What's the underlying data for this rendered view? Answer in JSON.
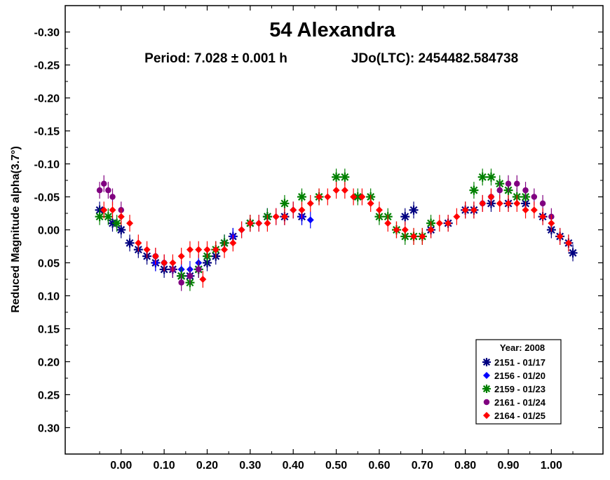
{
  "chart_data": {
    "type": "scatter",
    "title": "54 Alexandra",
    "subtitle_period": "Period: 7.028 ± 0.001 h",
    "subtitle_epoch": "JDo(LTC): 2454482.584738",
    "ylabel": "Reduced Magnitude alpha(3.7°)",
    "xlabel": "",
    "xlim": [
      -0.13,
      1.12
    ],
    "ylim": [
      0.34,
      -0.34
    ],
    "y_inverted": true,
    "grid": false,
    "legend_position": "bottom-right",
    "legend_title": "Year: 2008",
    "x_ticks": [
      0.0,
      0.1,
      0.2,
      0.3,
      0.4,
      0.5,
      0.6,
      0.7,
      0.8,
      0.9,
      1.0
    ],
    "x_tick_labels": [
      "0.00",
      "0.10",
      "0.20",
      "0.30",
      "0.40",
      "0.50",
      "0.60",
      "0.70",
      "0.80",
      "0.90",
      "1.00"
    ],
    "y_ticks": [
      -0.3,
      -0.25,
      -0.2,
      -0.15,
      -0.1,
      -0.05,
      0.0,
      0.05,
      0.1,
      0.15,
      0.2,
      0.25,
      0.3
    ],
    "y_tick_labels": [
      "-0.30",
      "-0.25",
      "-0.20",
      "-0.15",
      "-0.10",
      "-0.05",
      "0.00",
      "0.05",
      "0.10",
      "0.15",
      "0.20",
      "0.25",
      "0.30"
    ],
    "series": [
      {
        "name": "2151 - 01/17",
        "color": "#000080",
        "marker": "asterisk",
        "x": [
          -0.05,
          -0.02,
          0.0,
          0.02,
          0.04,
          0.06,
          0.08,
          0.1,
          0.12,
          0.14,
          0.16,
          0.18,
          0.2,
          0.22,
          0.24,
          0.26,
          0.3,
          0.34,
          0.38,
          0.42,
          0.66,
          0.68,
          0.72,
          0.76,
          0.8,
          0.82,
          0.86,
          0.9,
          0.94,
          0.98,
          1.0,
          1.02,
          1.04,
          1.05
        ],
        "y": [
          -0.03,
          -0.01,
          0.0,
          0.02,
          0.03,
          0.04,
          0.05,
          0.06,
          0.06,
          0.07,
          0.07,
          0.06,
          0.05,
          0.04,
          0.02,
          0.01,
          -0.01,
          -0.02,
          -0.02,
          -0.02,
          -0.02,
          -0.03,
          0.0,
          -0.01,
          -0.03,
          -0.03,
          -0.04,
          -0.04,
          -0.04,
          -0.02,
          0.0,
          0.01,
          0.02,
          0.035
        ]
      },
      {
        "name": "2156 - 01/20",
        "color": "#0000ff",
        "marker": "diamond",
        "x": [
          0.08,
          0.1,
          0.12,
          0.14,
          0.16,
          0.18,
          0.2,
          0.22,
          0.24,
          0.26,
          0.28,
          0.3,
          0.32,
          0.34,
          0.36,
          0.38,
          0.4,
          0.42,
          0.44
        ],
        "y": [
          0.05,
          0.05,
          0.06,
          0.06,
          0.06,
          0.05,
          0.04,
          0.03,
          0.02,
          0.01,
          0.0,
          -0.01,
          -0.01,
          -0.02,
          -0.02,
          -0.02,
          -0.03,
          -0.02,
          -0.015
        ]
      },
      {
        "name": "2159 - 01/23",
        "color": "#008000",
        "marker": "asterisk",
        "x": [
          -0.05,
          -0.03,
          -0.01,
          0.14,
          0.16,
          0.18,
          0.2,
          0.22,
          0.24,
          0.3,
          0.34,
          0.38,
          0.42,
          0.46,
          0.5,
          0.52,
          0.55,
          0.58,
          0.6,
          0.62,
          0.64,
          0.66,
          0.68,
          0.7,
          0.72,
          0.82,
          0.84,
          0.86,
          0.88,
          0.9,
          0.92,
          0.94
        ],
        "y": [
          -0.02,
          -0.02,
          -0.01,
          0.07,
          0.08,
          0.06,
          0.04,
          0.03,
          0.02,
          -0.01,
          -0.02,
          -0.04,
          -0.05,
          -0.05,
          -0.08,
          -0.08,
          -0.05,
          -0.05,
          -0.02,
          -0.02,
          0.0,
          0.01,
          0.01,
          0.01,
          -0.01,
          -0.06,
          -0.08,
          -0.08,
          -0.07,
          -0.06,
          -0.05,
          -0.05
        ]
      },
      {
        "name": "2161 - 01/24",
        "color": "#800080",
        "marker": "circle",
        "x": [
          -0.05,
          -0.04,
          -0.03,
          -0.02,
          0.0,
          0.08,
          0.1,
          0.12,
          0.14,
          0.16,
          0.18,
          0.84,
          0.86,
          0.88,
          0.9,
          0.92,
          0.94,
          0.96,
          0.98,
          1.0
        ],
        "y": [
          -0.06,
          -0.07,
          -0.06,
          -0.05,
          -0.03,
          0.04,
          0.05,
          0.06,
          0.08,
          0.07,
          0.06,
          -0.04,
          -0.05,
          -0.06,
          -0.07,
          -0.07,
          -0.06,
          -0.05,
          -0.04,
          -0.02
        ]
      },
      {
        "name": "2164 - 01/25",
        "color": "#ff0000",
        "marker": "diamond",
        "x": [
          -0.04,
          -0.02,
          0.0,
          0.02,
          0.04,
          0.06,
          0.08,
          0.1,
          0.12,
          0.14,
          0.16,
          0.18,
          0.19,
          0.2,
          0.22,
          0.24,
          0.26,
          0.28,
          0.3,
          0.32,
          0.34,
          0.36,
          0.38,
          0.4,
          0.42,
          0.44,
          0.46,
          0.48,
          0.5,
          0.52,
          0.54,
          0.56,
          0.58,
          0.6,
          0.62,
          0.64,
          0.66,
          0.68,
          0.7,
          0.72,
          0.74,
          0.76,
          0.78,
          0.8,
          0.82,
          0.84,
          0.86,
          0.88,
          0.9,
          0.92,
          0.94,
          0.96,
          0.98,
          1.0,
          1.02,
          1.04
        ],
        "y": [
          -0.03,
          -0.03,
          -0.02,
          -0.01,
          0.02,
          0.03,
          0.04,
          0.05,
          0.05,
          0.04,
          0.03,
          0.03,
          0.075,
          0.03,
          0.03,
          0.03,
          0.02,
          0.0,
          -0.01,
          -0.01,
          -0.01,
          -0.02,
          -0.02,
          -0.03,
          -0.03,
          -0.04,
          -0.05,
          -0.05,
          -0.06,
          -0.06,
          -0.05,
          -0.05,
          -0.04,
          -0.03,
          -0.01,
          0.0,
          0.0,
          0.01,
          0.01,
          0.0,
          -0.01,
          -0.01,
          -0.02,
          -0.03,
          -0.03,
          -0.04,
          -0.05,
          -0.04,
          -0.04,
          -0.04,
          -0.03,
          -0.03,
          -0.02,
          -0.01,
          0.01,
          0.02
        ]
      }
    ]
  }
}
